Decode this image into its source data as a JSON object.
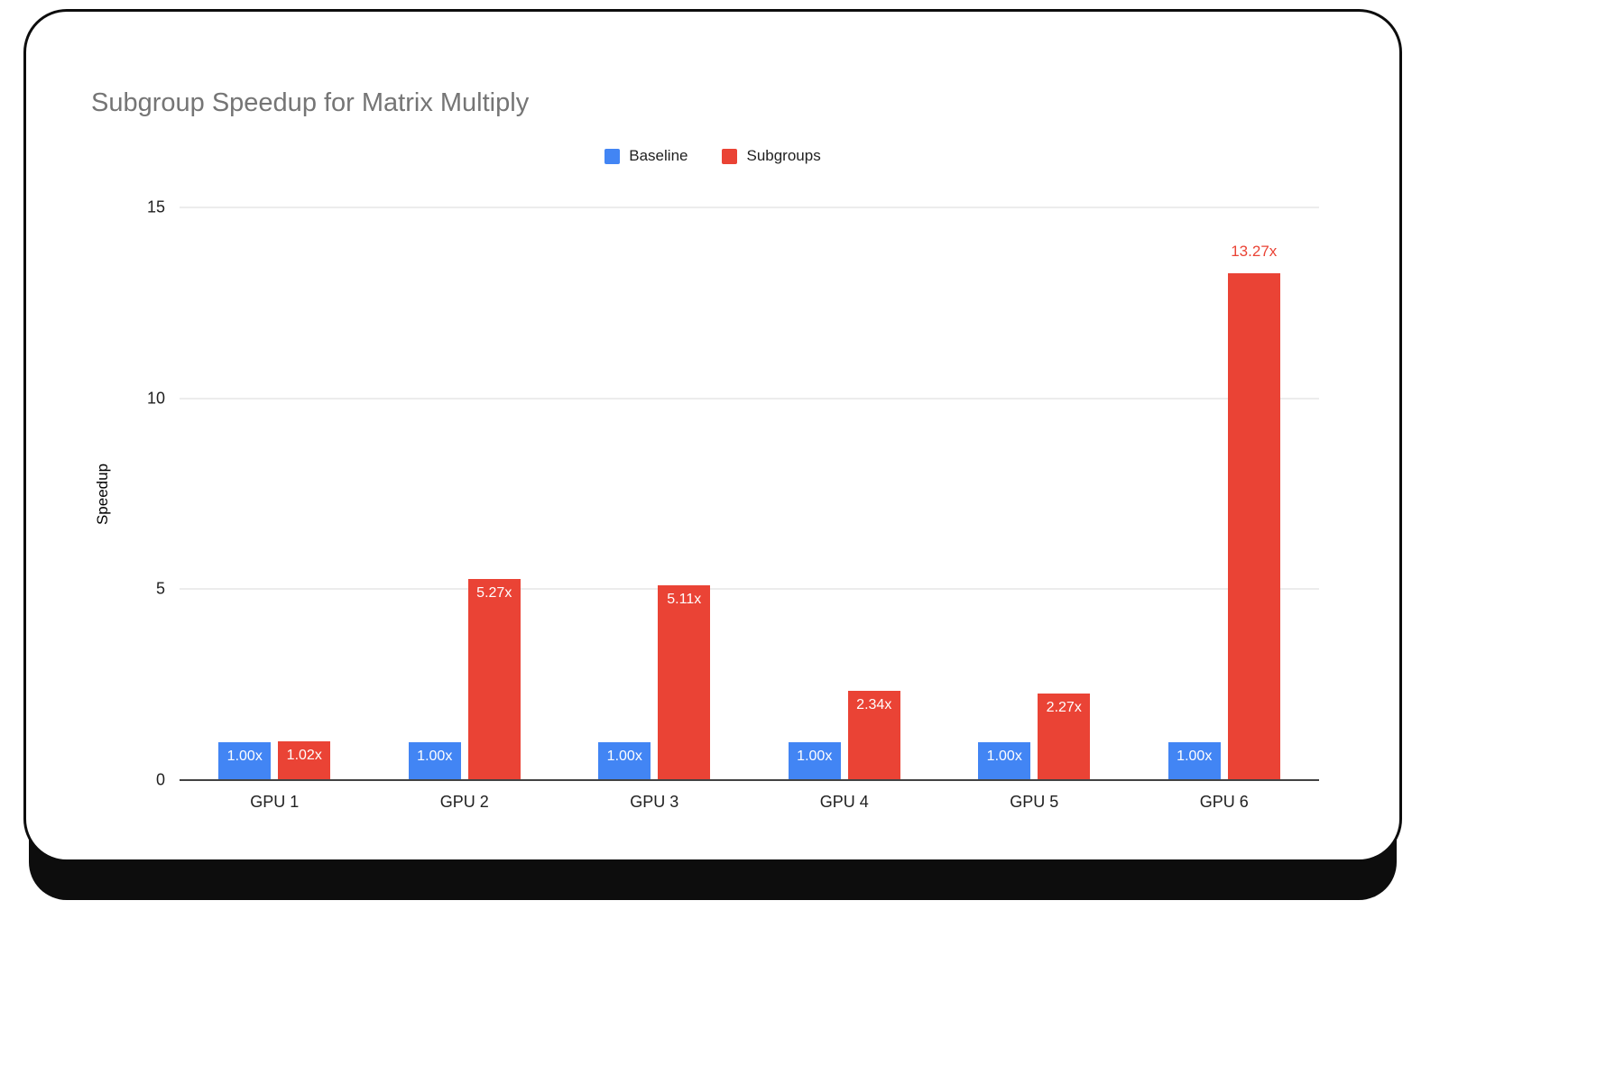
{
  "chart_data": {
    "type": "bar",
    "title": "Subgroup Speedup for Matrix Multiply",
    "xlabel": "",
    "ylabel": "Speedup",
    "categories": [
      "GPU 1",
      "GPU 2",
      "GPU 3",
      "GPU 4",
      "GPU 5",
      "GPU 6"
    ],
    "series": [
      {
        "name": "Baseline",
        "color": "#4285F4",
        "values": [
          1.0,
          1.0,
          1.0,
          1.0,
          1.0,
          1.0
        ],
        "labels": [
          "1.00x",
          "1.00x",
          "1.00x",
          "1.00x",
          "1.00x",
          "1.00x"
        ]
      },
      {
        "name": "Subgroups",
        "color": "#EA4335",
        "values": [
          1.02,
          5.27,
          5.11,
          2.34,
          2.27,
          13.27
        ],
        "labels": [
          "1.02x",
          "5.27x",
          "5.11x",
          "2.34x",
          "2.27x",
          "13.27x"
        ]
      }
    ],
    "ylim": [
      0,
      15
    ],
    "yticks": [
      0,
      5,
      10,
      15
    ],
    "legend_position": "top",
    "grid": true,
    "colors": {
      "title_text": "#757575",
      "axis_line": "#424242",
      "gridline": "#d9d9d9",
      "inside_label_text": "#ffffff",
      "card_border": "#0d0d0d"
    }
  }
}
